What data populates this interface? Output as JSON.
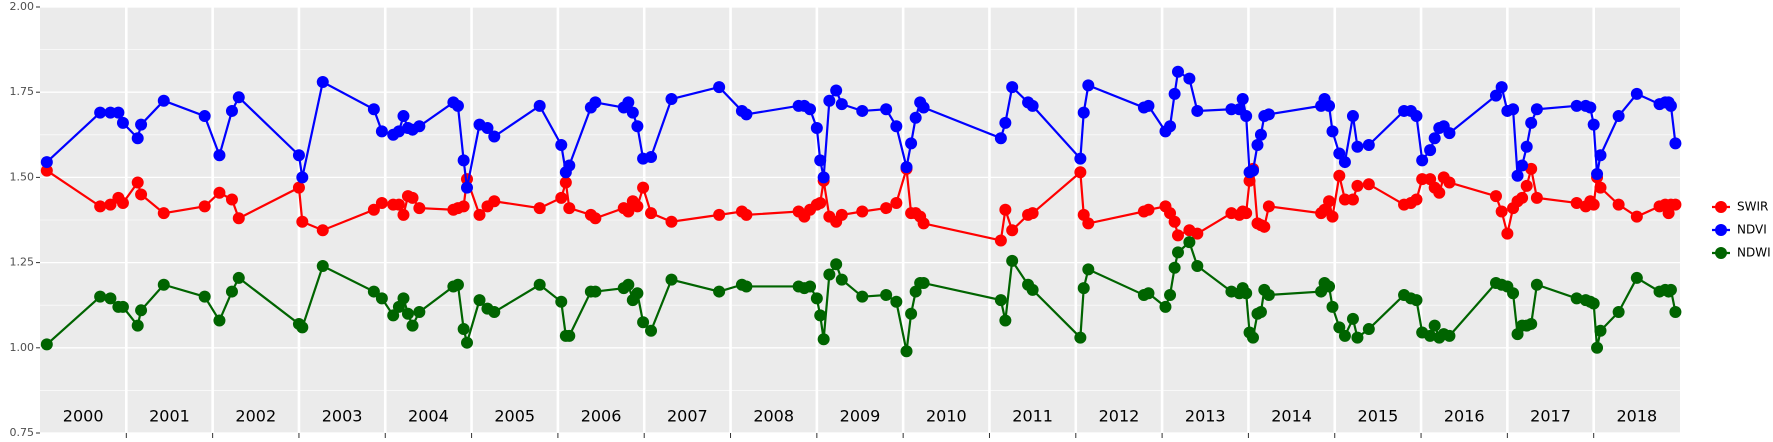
{
  "chart_data": {
    "type": "line",
    "x": [
      2000.079,
      2000.697,
      2000.816,
      2000.908,
      2000.961,
      2001.132,
      2001.171,
      2001.434,
      2001.908,
      2002.079,
      2002.224,
      2002.303,
      2003.0,
      2003.039,
      2003.276,
      2003.868,
      2003.961,
      2004.092,
      2004.158,
      2004.211,
      2004.263,
      2004.316,
      2004.395,
      2004.789,
      2004.842,
      2004.908,
      2004.947,
      2005.092,
      2005.184,
      2005.263,
      2005.789,
      2006.039,
      2006.092,
      2006.132,
      2006.382,
      2006.434,
      2006.763,
      2006.816,
      2006.868,
      2006.921,
      2006.987,
      2007.079,
      2007.316,
      2007.868,
      2008.132,
      2008.184,
      2008.789,
      2008.855,
      2008.921,
      2009.0,
      2009.039,
      2009.079,
      2009.145,
      2009.224,
      2009.289,
      2009.526,
      2009.803,
      2009.921,
      2010.039,
      2010.092,
      2010.145,
      2010.197,
      2010.237,
      2011.132,
      2011.184,
      2011.263,
      2011.447,
      2011.5,
      2012.053,
      2012.092,
      2012.145,
      2012.789,
      2012.842,
      2013.039,
      2013.092,
      2013.145,
      2013.184,
      2013.316,
      2013.408,
      2013.803,
      2013.895,
      2013.934,
      2013.974,
      2014.013,
      2014.053,
      2014.105,
      2014.145,
      2014.184,
      2014.237,
      2014.842,
      2014.882,
      2014.934,
      2014.974,
      2015.053,
      2015.118,
      2015.211,
      2015.263,
      2015.395,
      2015.803,
      2015.882,
      2015.947,
      2016.013,
      2016.105,
      2016.158,
      2016.211,
      2016.263,
      2016.329,
      2016.868,
      2016.934,
      2017.0,
      2017.066,
      2017.118,
      2017.171,
      2017.224,
      2017.276,
      2017.342,
      2017.803,
      2017.908,
      2017.961,
      2018.0,
      2018.039,
      2018.079,
      2018.289,
      2018.5,
      2018.763,
      2018.829,
      2018.868,
      2018.895,
      2018.947
    ],
    "series": [
      {
        "name": "SWIR",
        "color": "#ff0000",
        "values": [
          1.52,
          1.415,
          1.42,
          1.44,
          1.425,
          1.485,
          1.45,
          1.395,
          1.415,
          1.455,
          1.435,
          1.38,
          1.47,
          1.37,
          1.345,
          1.405,
          1.425,
          1.42,
          1.42,
          1.39,
          1.445,
          1.44,
          1.41,
          1.405,
          1.41,
          1.415,
          1.495,
          1.39,
          1.415,
          1.43,
          1.41,
          1.44,
          1.485,
          1.41,
          1.39,
          1.38,
          1.41,
          1.4,
          1.43,
          1.415,
          1.47,
          1.395,
          1.37,
          1.39,
          1.4,
          1.39,
          1.4,
          1.385,
          1.405,
          1.42,
          1.425,
          1.49,
          1.385,
          1.37,
          1.39,
          1.4,
          1.41,
          1.425,
          1.525,
          1.395,
          1.395,
          1.385,
          1.365,
          1.315,
          1.405,
          1.345,
          1.39,
          1.395,
          1.515,
          1.39,
          1.365,
          1.4,
          1.405,
          1.415,
          1.395,
          1.37,
          1.33,
          1.345,
          1.335,
          1.395,
          1.39,
          1.4,
          1.395,
          1.49,
          1.525,
          1.365,
          1.36,
          1.355,
          1.415,
          1.395,
          1.405,
          1.43,
          1.385,
          1.505,
          1.435,
          1.435,
          1.475,
          1.48,
          1.42,
          1.425,
          1.435,
          1.495,
          1.495,
          1.47,
          1.455,
          1.5,
          1.485,
          1.445,
          1.4,
          1.335,
          1.41,
          1.43,
          1.44,
          1.475,
          1.525,
          1.44,
          1.425,
          1.415,
          1.43,
          1.42,
          1.5,
          1.47,
          1.42,
          1.385,
          1.415,
          1.42,
          1.395,
          1.42,
          1.42
        ]
      },
      {
        "name": "NDVI",
        "color": "#0000ff",
        "values": [
          1.545,
          1.69,
          1.69,
          1.69,
          1.66,
          1.615,
          1.655,
          1.725,
          1.68,
          1.565,
          1.695,
          1.735,
          1.565,
          1.5,
          1.78,
          1.7,
          1.635,
          1.625,
          1.635,
          1.68,
          1.645,
          1.64,
          1.65,
          1.72,
          1.71,
          1.55,
          1.47,
          1.655,
          1.645,
          1.62,
          1.71,
          1.595,
          1.515,
          1.535,
          1.705,
          1.72,
          1.705,
          1.72,
          1.69,
          1.65,
          1.555,
          1.56,
          1.73,
          1.765,
          1.695,
          1.685,
          1.71,
          1.71,
          1.7,
          1.645,
          1.55,
          1.5,
          1.725,
          1.755,
          1.715,
          1.695,
          1.7,
          1.65,
          1.53,
          1.6,
          1.675,
          1.72,
          1.705,
          1.615,
          1.66,
          1.765,
          1.72,
          1.71,
          1.555,
          1.69,
          1.77,
          1.705,
          1.71,
          1.635,
          1.65,
          1.745,
          1.81,
          1.79,
          1.695,
          1.7,
          1.7,
          1.73,
          1.68,
          1.515,
          1.52,
          1.595,
          1.625,
          1.68,
          1.685,
          1.71,
          1.73,
          1.71,
          1.635,
          1.57,
          1.545,
          1.68,
          1.59,
          1.595,
          1.695,
          1.695,
          1.68,
          1.55,
          1.58,
          1.615,
          1.645,
          1.65,
          1.63,
          1.74,
          1.765,
          1.695,
          1.7,
          1.505,
          1.535,
          1.59,
          1.66,
          1.7,
          1.71,
          1.71,
          1.705,
          1.655,
          1.51,
          1.565,
          1.68,
          1.745,
          1.715,
          1.72,
          1.72,
          1.71,
          1.6
        ]
      },
      {
        "name": "NDWI",
        "color": "#006400",
        "values": [
          1.01,
          1.15,
          1.145,
          1.12,
          1.12,
          1.065,
          1.11,
          1.185,
          1.15,
          1.08,
          1.165,
          1.205,
          1.07,
          1.06,
          1.24,
          1.165,
          1.145,
          1.095,
          1.12,
          1.145,
          1.1,
          1.065,
          1.105,
          1.18,
          1.185,
          1.055,
          1.015,
          1.14,
          1.115,
          1.105,
          1.185,
          1.135,
          1.035,
          1.035,
          1.165,
          1.165,
          1.175,
          1.185,
          1.14,
          1.16,
          1.075,
          1.05,
          1.2,
          1.165,
          1.185,
          1.18,
          1.18,
          1.175,
          1.18,
          1.145,
          1.095,
          1.025,
          1.215,
          1.245,
          1.2,
          1.15,
          1.155,
          1.135,
          0.99,
          1.1,
          1.165,
          1.19,
          1.19,
          1.14,
          1.08,
          1.255,
          1.185,
          1.17,
          1.03,
          1.175,
          1.23,
          1.155,
          1.16,
          1.12,
          1.155,
          1.235,
          1.28,
          1.31,
          1.24,
          1.165,
          1.16,
          1.175,
          1.16,
          1.045,
          1.03,
          1.1,
          1.105,
          1.17,
          1.155,
          1.165,
          1.19,
          1.18,
          1.12,
          1.06,
          1.035,
          1.085,
          1.03,
          1.055,
          1.155,
          1.145,
          1.14,
          1.045,
          1.035,
          1.065,
          1.03,
          1.04,
          1.035,
          1.19,
          1.185,
          1.18,
          1.16,
          1.04,
          1.065,
          1.065,
          1.07,
          1.185,
          1.145,
          1.14,
          1.135,
          1.13,
          1.0,
          1.05,
          1.105,
          1.205,
          1.165,
          1.17,
          1.165,
          1.17,
          1.105
        ]
      }
    ],
    "xlim": [
      2000,
      2019
    ],
    "xticks": [
      2001,
      2002,
      2003,
      2004,
      2005,
      2006,
      2007,
      2008,
      2009,
      2010,
      2011,
      2012,
      2013,
      2014,
      2015,
      2016,
      2017,
      2018
    ],
    "year_labels": [
      "2000",
      "2001",
      "2002",
      "2003",
      "2004",
      "2005",
      "2006",
      "2007",
      "2008",
      "2009",
      "2010",
      "2011",
      "2012",
      "2013",
      "2014",
      "2015",
      "2016",
      "2017",
      "2018"
    ],
    "ylim": [
      0.75,
      2.0
    ],
    "yticks": [
      0.75,
      {
        "value": 1.0,
        "label": "1.00"
      },
      1.25,
      {
        "value": 1.5,
        "label": "1.50"
      },
      1.75,
      {
        "value": 2.0,
        "label": "2.00"
      }
    ],
    "grid": true,
    "legend": "right"
  }
}
